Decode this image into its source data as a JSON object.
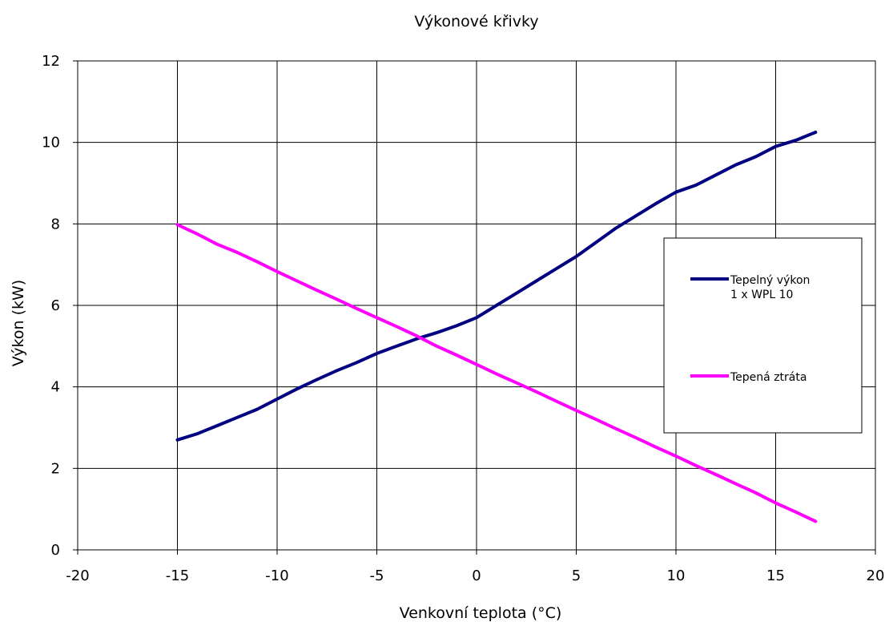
{
  "chart_data": {
    "type": "line",
    "title": "Výkonové křivky",
    "xlabel": "Venkovní teplota  (°C)",
    "ylabel": "Výkon  (kW)",
    "xlim": [
      -20,
      20
    ],
    "ylim": [
      0,
      12
    ],
    "xticks": [
      -20,
      -15,
      -10,
      -5,
      0,
      5,
      10,
      15,
      20
    ],
    "yticks": [
      0,
      2,
      4,
      6,
      8,
      10,
      12
    ],
    "grid": true,
    "legend_position": "right",
    "series": [
      {
        "name": "Tepelný výkon 1 x WPL 10",
        "legend_lines": [
          "Tepelný výkon",
          "1 x WPL 10"
        ],
        "color": "#000080",
        "x": [
          -15,
          -14,
          -13,
          -12,
          -11,
          -10,
          -9,
          -8,
          -7,
          -6,
          -5,
          -4,
          -3,
          -2,
          -1,
          0,
          1,
          2,
          3,
          4,
          5,
          6,
          7,
          8,
          9,
          10,
          11,
          12,
          13,
          14,
          15,
          16,
          17
        ],
        "y": [
          2.7,
          2.85,
          3.05,
          3.25,
          3.45,
          3.7,
          3.95,
          4.18,
          4.4,
          4.6,
          4.82,
          5.0,
          5.18,
          5.33,
          5.5,
          5.7,
          6.0,
          6.3,
          6.6,
          6.9,
          7.2,
          7.55,
          7.9,
          8.2,
          8.5,
          8.78,
          8.95,
          9.2,
          9.45,
          9.65,
          9.9,
          10.05,
          10.25
        ]
      },
      {
        "name": "Tepená ztráta",
        "legend_lines": [
          "Tepená ztráta"
        ],
        "color": "#FF00FF",
        "x": [
          -15,
          -14,
          -13,
          -12,
          -11,
          -10,
          -9,
          -8,
          -7,
          -6,
          -5,
          -4,
          -3,
          -2,
          -1,
          0,
          1,
          2,
          3,
          4,
          5,
          6,
          7,
          8,
          9,
          10,
          11,
          12,
          13,
          14,
          15,
          16,
          17
        ],
        "y": [
          7.98,
          7.75,
          7.5,
          7.3,
          7.07,
          6.83,
          6.6,
          6.37,
          6.15,
          5.92,
          5.7,
          5.48,
          5.25,
          5.0,
          4.78,
          4.55,
          4.32,
          4.1,
          3.88,
          3.65,
          3.42,
          3.2,
          2.97,
          2.75,
          2.52,
          2.3,
          2.07,
          1.85,
          1.62,
          1.4,
          1.15,
          0.93,
          0.7
        ]
      }
    ]
  }
}
